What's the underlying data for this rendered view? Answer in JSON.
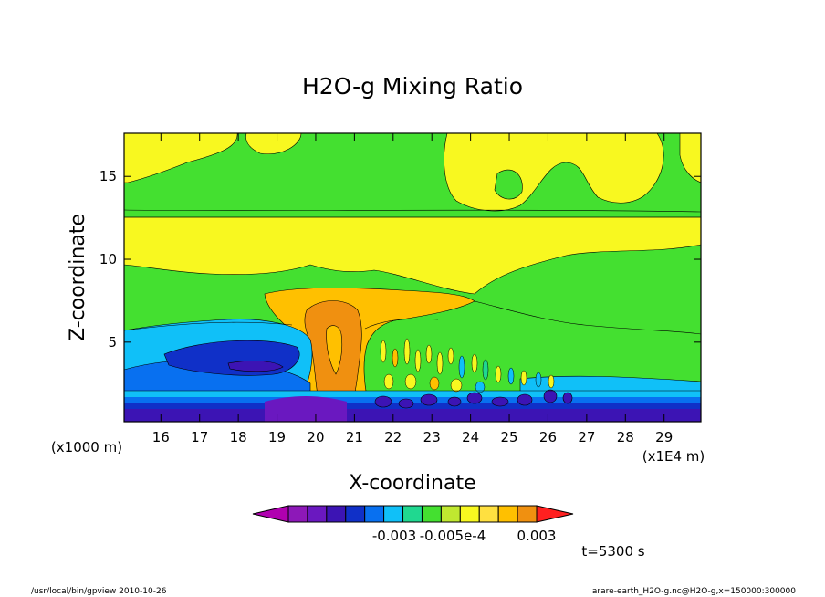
{
  "chart_data": {
    "type": "heatmap",
    "title": "H2O-g Mixing Ratio",
    "xlabel": "X-coordinate",
    "ylabel": "Z-coordinate",
    "x_unit_label": "(x1000 m)",
    "x_multiplier_label": "(x1E4 m)",
    "x_ticks": [
      16,
      17,
      18,
      19,
      20,
      21,
      22,
      23,
      24,
      25,
      26,
      27,
      28,
      29
    ],
    "y_ticks": [
      5,
      10,
      15
    ],
    "xlim": [
      15.05,
      29.95
    ],
    "ylim": [
      0.2,
      17.6
    ],
    "colorbar": {
      "colors": [
        "#b000b0",
        "#8d18b8",
        "#6a18c0",
        "#3c14b4",
        "#1030c8",
        "#0870f0",
        "#10c0f8",
        "#20d890",
        "#44e030",
        "#c0e830",
        "#f8f820",
        "#ffe040",
        "#ffc000",
        "#f09010",
        "#ff2020"
      ],
      "tick_labels": [
        "-0.003",
        "-0.005e-4",
        "-0.005e-4",
        "0.003"
      ]
    },
    "time_label": "t=5300 s",
    "footer_left": "/usr/local/bin/gpview   2010-10-26",
    "footer_right": "arare-earth_H2O-g.nc@H2O-g,x=150000:300000"
  }
}
